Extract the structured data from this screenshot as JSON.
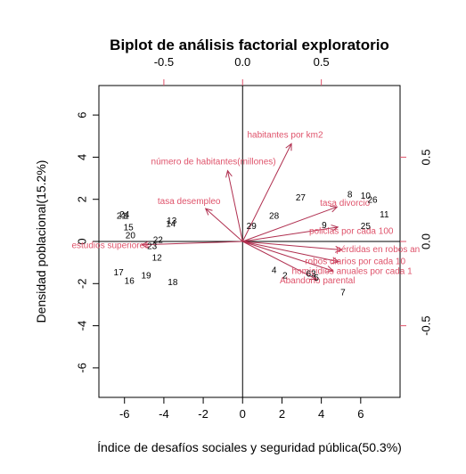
{
  "chart_data": {
    "type": "scatter",
    "title": "Biplot de análisis factorial exploratorio",
    "xlabel": "Índice de desafíos sociales y seguridad pública(50.3%)",
    "ylabel": "Densidad poblacional(15.2%)",
    "xlim": [
      -7.3,
      8
    ],
    "ylim": [
      -7.4,
      7.4
    ],
    "x_ticks": [
      -6,
      -4,
      -2,
      0,
      2,
      4,
      6
    ],
    "y_ticks": [
      -6,
      -4,
      -2,
      0,
      2,
      4,
      6
    ],
    "x_tick_labels": [
      "-6",
      "-4",
      "-2",
      "0",
      "2",
      "4",
      "6"
    ],
    "y_tick_labels": [
      "-6",
      "-4",
      "-2",
      "0",
      "2",
      "4",
      "6"
    ],
    "var_axis": {
      "xlim": [
        -0.9125,
        1.0
      ],
      "ylim": [
        -0.925,
        0.925
      ],
      "x_ticks": [
        -0.5,
        0.0,
        0.5
      ],
      "y_ticks": [
        -0.5,
        0.0,
        0.5
      ],
      "x_tick_labels": [
        "-0.5",
        "0.0",
        "0.5"
      ],
      "y_tick_labels": [
        "-0.5",
        "0.0",
        "0.5"
      ]
    },
    "var_color": "#DF536B",
    "arrow_color": "#B03050",
    "observations": [
      {
        "label": "1",
        "x": -5.9,
        "y": 1.2
      },
      {
        "label": "2",
        "x": 2.15,
        "y": -1.65
      },
      {
        "label": "3",
        "x": 3.6,
        "y": -1.55
      },
      {
        "label": "4",
        "x": 1.6,
        "y": -1.4
      },
      {
        "label": "5",
        "x": 3.75,
        "y": -1.75
      },
      {
        "label": "6",
        "x": 3.35,
        "y": -1.55
      },
      {
        "label": "7",
        "x": 5.1,
        "y": -2.45
      },
      {
        "label": "8",
        "x": 5.45,
        "y": 2.2
      },
      {
        "label": "9",
        "x": 4.15,
        "y": 0.75
      },
      {
        "label": "10",
        "x": 6.25,
        "y": 2.15
      },
      {
        "label": "11",
        "x": 7.2,
        "y": 1.25
      },
      {
        "label": "12",
        "x": -4.35,
        "y": -0.8
      },
      {
        "label": "13",
        "x": -3.6,
        "y": 0.95
      },
      {
        "label": "14",
        "x": -3.65,
        "y": 0.8
      },
      {
        "label": "15",
        "x": -5.8,
        "y": 0.65
      },
      {
        "label": "16",
        "x": -5.75,
        "y": -1.9
      },
      {
        "label": "17",
        "x": -6.3,
        "y": -1.5
      },
      {
        "label": "18",
        "x": -3.55,
        "y": -1.95
      },
      {
        "label": "19",
        "x": -4.9,
        "y": -1.65
      },
      {
        "label": "20",
        "x": -5.7,
        "y": 0.25
      },
      {
        "label": "21",
        "x": -6.15,
        "y": 1.2
      },
      {
        "label": "22",
        "x": -4.3,
        "y": 0.05
      },
      {
        "label": "23",
        "x": -4.6,
        "y": -0.25
      },
      {
        "label": "24",
        "x": -6.0,
        "y": 1.25
      },
      {
        "label": "25",
        "x": 6.25,
        "y": 0.7
      },
      {
        "label": "26",
        "x": 6.6,
        "y": 1.95
      },
      {
        "label": "27",
        "x": 2.95,
        "y": 2.05
      },
      {
        "label": "28",
        "x": 1.6,
        "y": 1.2
      },
      {
        "label": "29",
        "x": 0.45,
        "y": 0.7
      }
    ],
    "variables": [
      {
        "label": "habitantes por km2",
        "x": 0.31,
        "y": 0.58,
        "lx": 0.27,
        "ly": 0.63
      },
      {
        "label": "número de habitantes(millones)",
        "x": -0.095,
        "y": 0.42,
        "lx": -0.185,
        "ly": 0.47
      },
      {
        "label": "tasa desempleo",
        "x": -0.235,
        "y": 0.195,
        "lx": -0.34,
        "ly": 0.235
      },
      {
        "label": "estudios superiores",
        "x": -0.64,
        "y": -0.02,
        "lx": -0.84,
        "ly": -0.025
      },
      {
        "label": "tasa divorcio",
        "x": 0.6,
        "y": 0.205,
        "lx": 0.65,
        "ly": 0.225
      },
      {
        "label": "policias por cada 100",
        "x": 0.605,
        "y": 0.085,
        "lx": 0.69,
        "ly": 0.06
      },
      {
        "label": "pérdidas en robos an",
        "x": 0.63,
        "y": -0.05,
        "lx": 0.86,
        "ly": -0.05
      },
      {
        "label": "robos diarios por cada 10",
        "x": 0.61,
        "y": -0.12,
        "lx": 0.715,
        "ly": -0.12
      },
      {
        "label": "homicidios anuales por cada 1",
        "x": 0.575,
        "y": -0.175,
        "lx": 0.695,
        "ly": -0.18
      },
      {
        "label": "Abandono parental",
        "x": 0.47,
        "y": -0.225,
        "lx": 0.475,
        "ly": -0.235
      }
    ]
  }
}
